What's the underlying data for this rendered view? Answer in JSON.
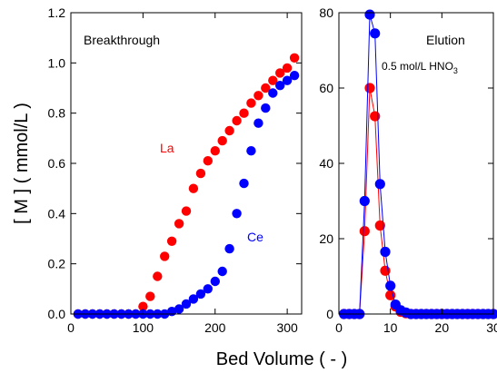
{
  "chart_data": [
    {
      "type": "scatter",
      "title": "Breakthrough",
      "xlabel": "Bed Volume ( - )",
      "ylabel": "[ M ] ( mmol/L )",
      "xlim": [
        0,
        320
      ],
      "ylim": [
        0,
        1.2
      ],
      "xticks": [
        "0",
        "100",
        "200",
        "300"
      ],
      "yticks": [
        "0.0",
        "0.2",
        "0.4",
        "0.6",
        "0.8",
        "1.0",
        "1.2"
      ],
      "grid": false,
      "series": [
        {
          "name": "La",
          "color": "#ff0000",
          "x": [
            10,
            20,
            30,
            40,
            50,
            60,
            70,
            80,
            90,
            100,
            110,
            120,
            130,
            140,
            150,
            160,
            170,
            180,
            190,
            200,
            210,
            220,
            230,
            240,
            250,
            260,
            270,
            280,
            290,
            300,
            310
          ],
          "y": [
            0,
            0,
            0,
            0,
            0,
            0,
            0,
            0,
            0,
            0.03,
            0.07,
            0.15,
            0.23,
            0.29,
            0.36,
            0.41,
            0.5,
            0.56,
            0.61,
            0.65,
            0.69,
            0.73,
            0.77,
            0.8,
            0.84,
            0.87,
            0.9,
            0.93,
            0.96,
            0.98,
            1.02
          ]
        },
        {
          "name": "Ce",
          "color": "#0000ff",
          "x": [
            10,
            20,
            30,
            40,
            50,
            60,
            70,
            80,
            90,
            100,
            110,
            120,
            130,
            140,
            150,
            160,
            170,
            180,
            190,
            200,
            210,
            220,
            230,
            240,
            250,
            260,
            270,
            280,
            290,
            300,
            310
          ],
          "y": [
            0,
            0,
            0,
            0,
            0,
            0,
            0,
            0,
            0,
            0,
            0,
            0,
            0,
            0.01,
            0.02,
            0.04,
            0.06,
            0.08,
            0.1,
            0.13,
            0.17,
            0.26,
            0.4,
            0.52,
            0.65,
            0.76,
            0.82,
            0.88,
            0.91,
            0.93,
            0.95
          ]
        }
      ]
    },
    {
      "type": "line",
      "title": "Elution",
      "annotation": {
        "text": "0.5 mol/L HNO",
        "sub": "3"
      },
      "xlim": [
        0,
        30
      ],
      "ylim": [
        0,
        80
      ],
      "xticks": [
        "0",
        "10",
        "20",
        "30"
      ],
      "yticks": [
        "0",
        "20",
        "40",
        "60",
        "80"
      ],
      "grid": false,
      "series": [
        {
          "name": "La",
          "color": "#ff0000",
          "x": [
            1,
            2,
            3,
            4,
            5,
            6,
            7,
            8,
            9,
            10,
            11,
            12,
            13,
            14,
            15,
            16,
            17,
            18,
            19,
            20,
            21,
            22,
            23,
            24,
            25,
            26,
            27,
            28,
            29,
            30
          ],
          "y": [
            0,
            0,
            0,
            0,
            22,
            60,
            52.5,
            23.5,
            11.5,
            5,
            2,
            0.6,
            0.2,
            0,
            0,
            0,
            0,
            0,
            0,
            0,
            0,
            0,
            0,
            0,
            0,
            0,
            0,
            0,
            0,
            0
          ]
        },
        {
          "name": "Ce",
          "color": "#0000ff",
          "x": [
            1,
            2,
            3,
            4,
            5,
            6,
            7,
            8,
            9,
            10,
            11,
            12,
            13,
            14,
            15,
            16,
            17,
            18,
            19,
            20,
            21,
            22,
            23,
            24,
            25,
            26,
            27,
            28,
            29,
            30
          ],
          "y": [
            0,
            0,
            0,
            0,
            30,
            79.5,
            74.5,
            34.5,
            16.5,
            7.5,
            2.5,
            1,
            0.4,
            0,
            0,
            0,
            0,
            0,
            0,
            0,
            0,
            0,
            0,
            0,
            0,
            0,
            0,
            0,
            0,
            0
          ]
        }
      ]
    }
  ]
}
